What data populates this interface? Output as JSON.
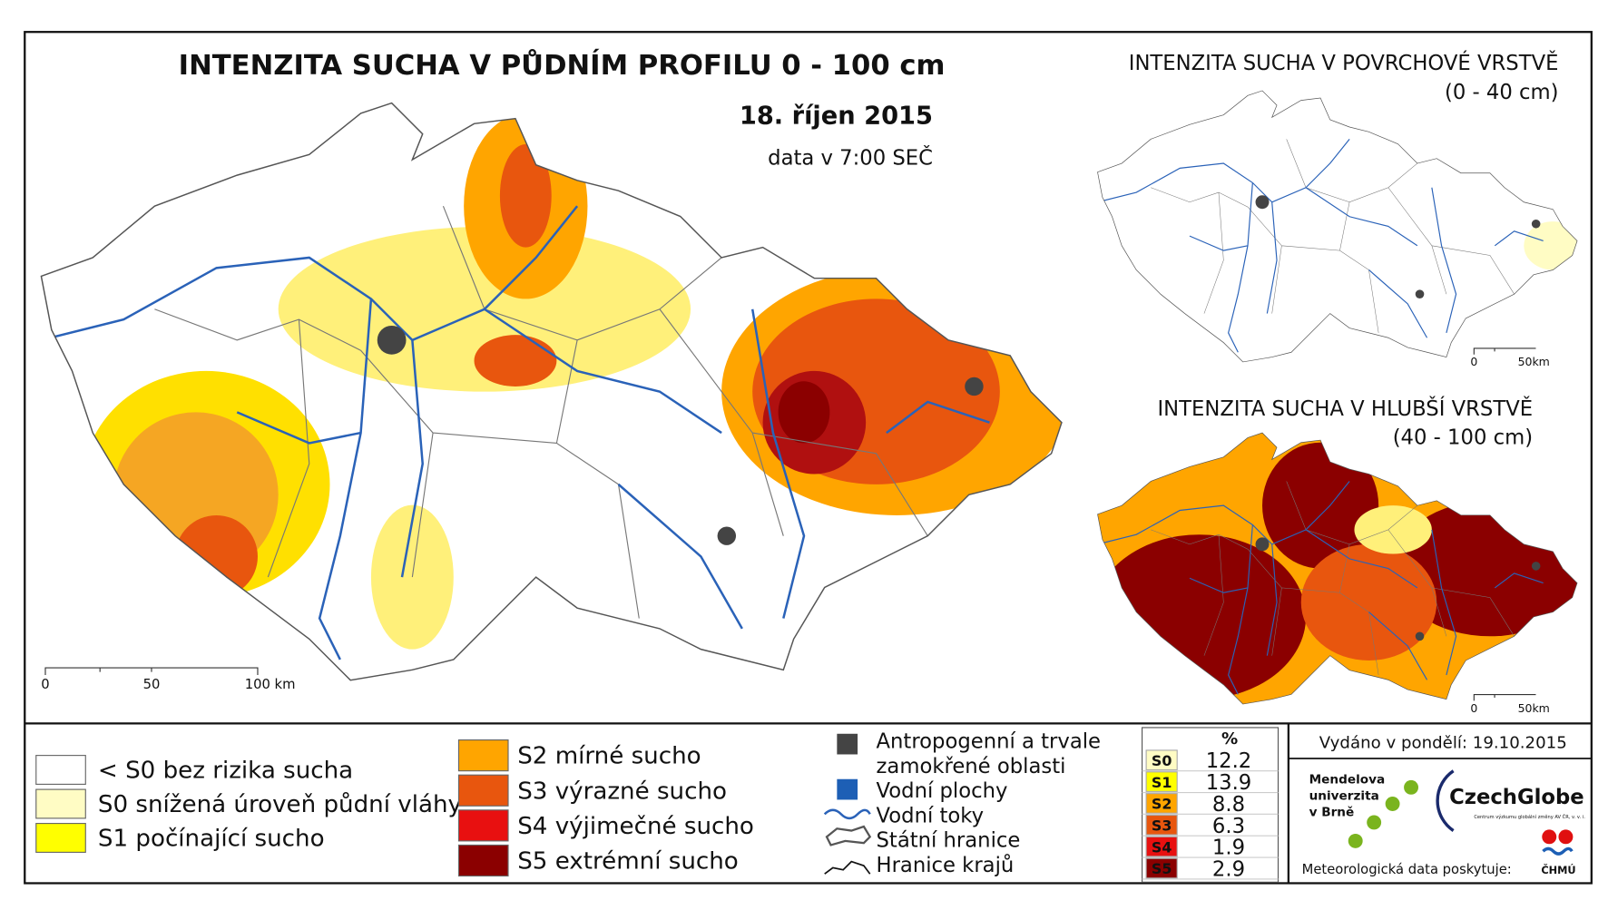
{
  "main_map": {
    "title": "INTENZITA SUCHA V PŮDNÍM PROFILU 0 - 100 cm",
    "date": "18. říjen 2015",
    "time": "data v 7:00 SEČ",
    "scale": [
      "0",
      "50",
      "100 km"
    ]
  },
  "surface_map": {
    "title": "INTENZITA SUCHA V POVRCHOVÉ VRSTVĚ",
    "depth": "(0 - 40 cm)",
    "scale": [
      "0",
      "50km"
    ]
  },
  "deep_map": {
    "title": "INTENZITA SUCHA V HLUBŠÍ VRSTVĚ",
    "depth": "(40 - 100 cm)",
    "scale": [
      "0",
      "50km"
    ]
  },
  "legend": {
    "classes": [
      {
        "label": "< S0 bez rizika sucha",
        "color": "#ffffff"
      },
      {
        "label": "S0 snížená úroveň půdní vláhy",
        "color": "#fffcc4"
      },
      {
        "label": "S1 počínající sucho",
        "color": "#ffff00"
      },
      {
        "label": "S2 mírné sucho",
        "color": "#ffa500"
      },
      {
        "label": "S3 výrazné sucho",
        "color": "#e8560e"
      },
      {
        "label": "S4 výjimečné sucho",
        "color": "#e81010"
      },
      {
        "label": "S5 extrémní sucho",
        "color": "#8b0000"
      }
    ],
    "symbols": [
      [
        "Antropogenní a trvale",
        "zamokřené oblasti"
      ],
      [
        "Vodní plochy"
      ],
      [
        "Vodní toky"
      ],
      [
        "Státní hranice"
      ],
      [
        "Hranice krajů"
      ]
    ]
  },
  "table": {
    "header": "%",
    "rows": [
      {
        "code": "S0",
        "percent": 12.2,
        "color": "#fffcc4"
      },
      {
        "code": "S1",
        "percent": 13.9,
        "color": "#ffff00"
      },
      {
        "code": "S2",
        "percent": 8.8,
        "color": "#ffa500"
      },
      {
        "code": "S3",
        "percent": 6.3,
        "color": "#e8560e"
      },
      {
        "code": "S4",
        "percent": 1.9,
        "color": "#e81010"
      },
      {
        "code": "S5",
        "percent": 2.9,
        "color": "#8b0000"
      }
    ]
  },
  "footer": {
    "issued": "Vydáno v pondělí: 19.10.2015",
    "mendel": [
      "Mendelova",
      "univerzita",
      "v Brně"
    ],
    "czechglobe": "CzechGlobe",
    "czechglobe_sub": "Centrum výzkumu globální změny AV ČR, v. v. i.",
    "provider": "Meteorologická data poskytuje:",
    "chmu": "ČHMÚ"
  }
}
